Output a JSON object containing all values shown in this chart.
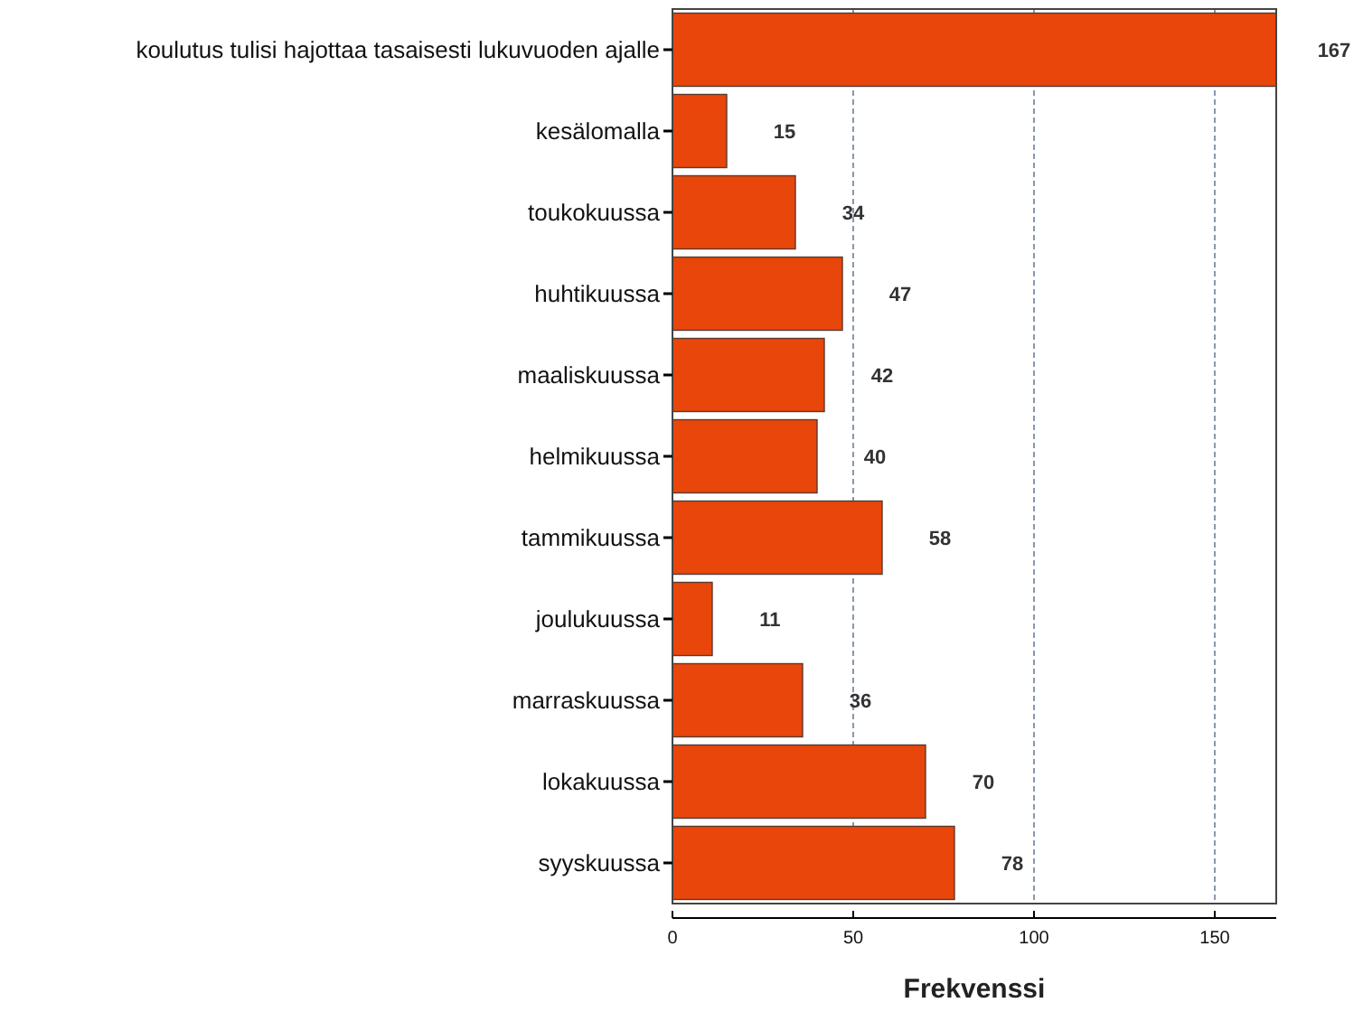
{
  "chart_data": {
    "type": "bar",
    "orientation": "horizontal",
    "xlabel": "Frekvenssi",
    "categories": [
      "koulutus tulisi hajottaa tasaisesti lukuvuoden ajalle",
      "kesälomalla",
      "toukokuussa",
      "huhtikuussa",
      "maaliskuussa",
      "helmikuussa",
      "tammikuussa",
      "joulukuussa",
      "marraskuussa",
      "lokakuussa",
      "syyskuussa"
    ],
    "values": [
      167,
      15,
      34,
      47,
      42,
      40,
      58,
      11,
      36,
      70,
      78
    ],
    "color": "#e8460a",
    "xlim": [
      0,
      167
    ],
    "xticks": [
      0,
      50,
      100,
      150
    ],
    "grid": "x",
    "data_labels": true
  }
}
